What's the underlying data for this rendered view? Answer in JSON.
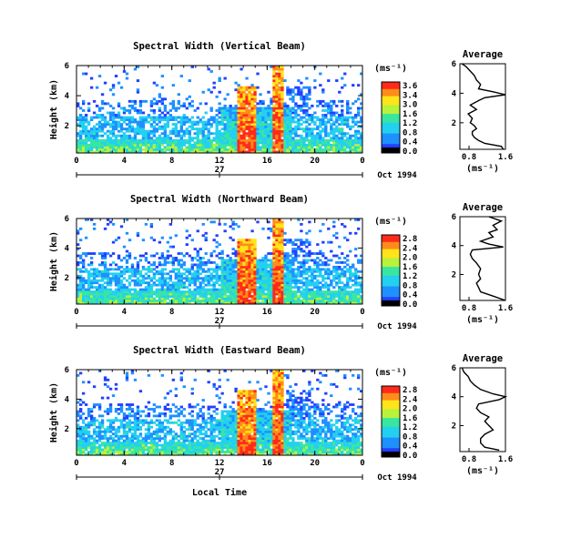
{
  "chart_data": [
    {
      "type": "heatmap",
      "title": "Spectral Width (Vertical Beam)",
      "ylabel": "Height (km)",
      "x_ticks": [
        "0",
        "4",
        "8",
        "12",
        "16",
        "20",
        "0"
      ],
      "date_day": "27",
      "date_label": "Oct 1994",
      "y_ticks": [
        "6",
        "4",
        "2"
      ],
      "xlim": [
        0,
        24
      ],
      "ylim": [
        0.2,
        6
      ],
      "colorbar_unit": "(ms⁻¹)",
      "colorbar_ticks": [
        "3.6",
        "3.4",
        "3.0",
        "1.6",
        "1.2",
        "0.8",
        "0.4",
        "0.0"
      ],
      "profile": {
        "title": "Average",
        "xlabel": "(ms⁻¹)",
        "x_ticks": [
          "0.8",
          "1.6"
        ],
        "y_ticks": [
          "6",
          "4",
          "2"
        ],
        "xlim": [
          0.5,
          1.6
        ],
        "ylim": [
          0.2,
          6
        ],
        "points": [
          [
            1.55,
            0.2
          ],
          [
            1.5,
            0.4
          ],
          [
            1.1,
            0.6
          ],
          [
            0.95,
            0.8
          ],
          [
            0.85,
            1.0
          ],
          [
            0.8,
            1.2
          ],
          [
            0.8,
            1.4
          ],
          [
            0.9,
            1.6
          ],
          [
            0.85,
            1.8
          ],
          [
            0.75,
            2.0
          ],
          [
            0.8,
            2.3
          ],
          [
            0.7,
            2.6
          ],
          [
            0.9,
            2.9
          ],
          [
            0.75,
            3.2
          ],
          [
            0.95,
            3.5
          ],
          [
            1.1,
            3.7
          ],
          [
            1.6,
            3.9
          ],
          [
            1.3,
            4.1
          ],
          [
            0.95,
            4.3
          ],
          [
            1.0,
            4.6
          ],
          [
            0.9,
            4.9
          ],
          [
            0.85,
            5.2
          ],
          [
            0.75,
            5.5
          ],
          [
            0.65,
            5.8
          ],
          [
            0.55,
            6.0
          ]
        ]
      }
    },
    {
      "type": "heatmap",
      "title": "Spectral Width (Northward Beam)",
      "ylabel": "Height (km)",
      "x_ticks": [
        "0",
        "4",
        "8",
        "12",
        "16",
        "20",
        "0"
      ],
      "date_day": "27",
      "date_label": "Oct 1994",
      "y_ticks": [
        "6",
        "4",
        "2"
      ],
      "xlim": [
        0,
        24
      ],
      "ylim": [
        0.2,
        6
      ],
      "colorbar_unit": "(ms⁻¹)",
      "colorbar_ticks": [
        "2.8",
        "2.4",
        "2.0",
        "1.6",
        "1.2",
        "0.8",
        "0.4",
        "0.0"
      ],
      "profile": {
        "title": "Average",
        "xlabel": "(ms⁻¹)",
        "x_ticks": [
          "0.8",
          "1.6"
        ],
        "y_ticks": [
          "6",
          "4",
          "2"
        ],
        "xlim": [
          0.5,
          1.6
        ],
        "ylim": [
          0.2,
          6
        ],
        "points": [
          [
            1.6,
            0.2
          ],
          [
            1.3,
            0.5
          ],
          [
            1.0,
            0.8
          ],
          [
            0.95,
            1.1
          ],
          [
            0.9,
            1.4
          ],
          [
            1.0,
            1.7
          ],
          [
            0.95,
            2.0
          ],
          [
            1.0,
            2.4
          ],
          [
            0.9,
            2.8
          ],
          [
            0.8,
            3.1
          ],
          [
            0.75,
            3.4
          ],
          [
            0.8,
            3.7
          ],
          [
            1.55,
            3.9
          ],
          [
            1.2,
            4.1
          ],
          [
            1.0,
            4.3
          ],
          [
            1.3,
            4.6
          ],
          [
            1.2,
            4.9
          ],
          [
            1.4,
            5.1
          ],
          [
            1.3,
            5.4
          ],
          [
            1.5,
            5.7
          ],
          [
            1.2,
            6.0
          ]
        ]
      }
    },
    {
      "type": "heatmap",
      "title": "Spectral Width (Eastward Beam)",
      "ylabel": "Height (km)",
      "x_ticks": [
        "0",
        "4",
        "8",
        "12",
        "16",
        "20",
        "0"
      ],
      "date_day": "27",
      "date_label": "Oct 1994",
      "xlabel": "Local Time",
      "y_ticks": [
        "6",
        "4",
        "2"
      ],
      "xlim": [
        0,
        24
      ],
      "ylim": [
        0.2,
        6
      ],
      "colorbar_unit": "(ms⁻¹)",
      "colorbar_ticks": [
        "2.8",
        "2.4",
        "2.0",
        "1.6",
        "1.2",
        "0.8",
        "0.4",
        "0.0"
      ],
      "profile": {
        "title": "Average",
        "xlabel": "(ms⁻¹)",
        "x_ticks": [
          "0.8",
          "1.6"
        ],
        "y_ticks": [
          "6",
          "4",
          "2"
        ],
        "xlim": [
          0.5,
          1.6
        ],
        "ylim": [
          0.2,
          6
        ],
        "points": [
          [
            1.45,
            0.3
          ],
          [
            1.1,
            0.5
          ],
          [
            1.0,
            0.8
          ],
          [
            1.0,
            1.1
          ],
          [
            1.1,
            1.4
          ],
          [
            1.3,
            1.7
          ],
          [
            1.2,
            2.0
          ],
          [
            1.1,
            2.3
          ],
          [
            1.2,
            2.6
          ],
          [
            1.0,
            2.9
          ],
          [
            0.9,
            3.2
          ],
          [
            0.95,
            3.5
          ],
          [
            1.45,
            3.8
          ],
          [
            1.6,
            4.0
          ],
          [
            1.3,
            4.2
          ],
          [
            1.0,
            4.5
          ],
          [
            0.85,
            4.8
          ],
          [
            0.75,
            5.1
          ],
          [
            0.7,
            5.4
          ],
          [
            0.6,
            5.7
          ],
          [
            0.55,
            6.0
          ]
        ]
      }
    }
  ]
}
